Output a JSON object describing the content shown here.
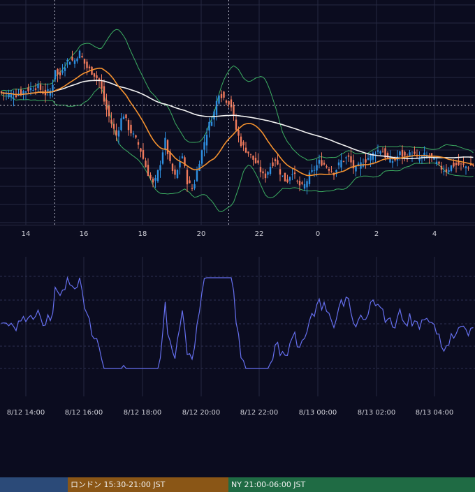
{
  "colors": {
    "background": "#0b0c1f",
    "bull_candle": "#2e8fe0",
    "bear_candle": "#f07a5c",
    "ma_short": "#f5922f",
    "ma_long": "#f2f2f2",
    "bollinger": "#3cae62",
    "oscillator": "#6670f0",
    "grid": "#262840",
    "session_tokyo": "#2b4a78",
    "session_london": "#8a5616",
    "session_ny": "#1f6b44"
  },
  "sessions": [
    {
      "id": "tokyo",
      "label": ""
    },
    {
      "id": "london",
      "label": "ロンドン 15:30-21:00 JST"
    },
    {
      "id": "ny",
      "label": "NY 21:00-06:00 JST"
    }
  ],
  "chart_data": [
    {
      "type": "candlestick",
      "x_ticks": [
        "14",
        "16",
        "18",
        "20",
        "22",
        "0",
        "2",
        "4"
      ],
      "grid": true,
      "overlays": [
        "moving average (orange)",
        "moving average (white)",
        "bollinger bands (green)"
      ],
      "y_range": [
        0,
        100
      ],
      "dashed_horizontal_level": 56,
      "dashed_vertical_lines_at": [
        "15",
        "21"
      ],
      "series_note": "price values in relative units (no price scale visible)"
    },
    {
      "type": "line",
      "x_ticks": [
        "8/12 14:00",
        "8/12 16:00",
        "8/12 18:00",
        "8/12 20:00",
        "8/12 22:00",
        "8/13 00:00",
        "8/13 02:00",
        "8/13 04:00"
      ],
      "grid": true,
      "y_range": [
        0,
        100
      ],
      "series_note": "oscillator values in relative units (no value scale visible)"
    }
  ]
}
